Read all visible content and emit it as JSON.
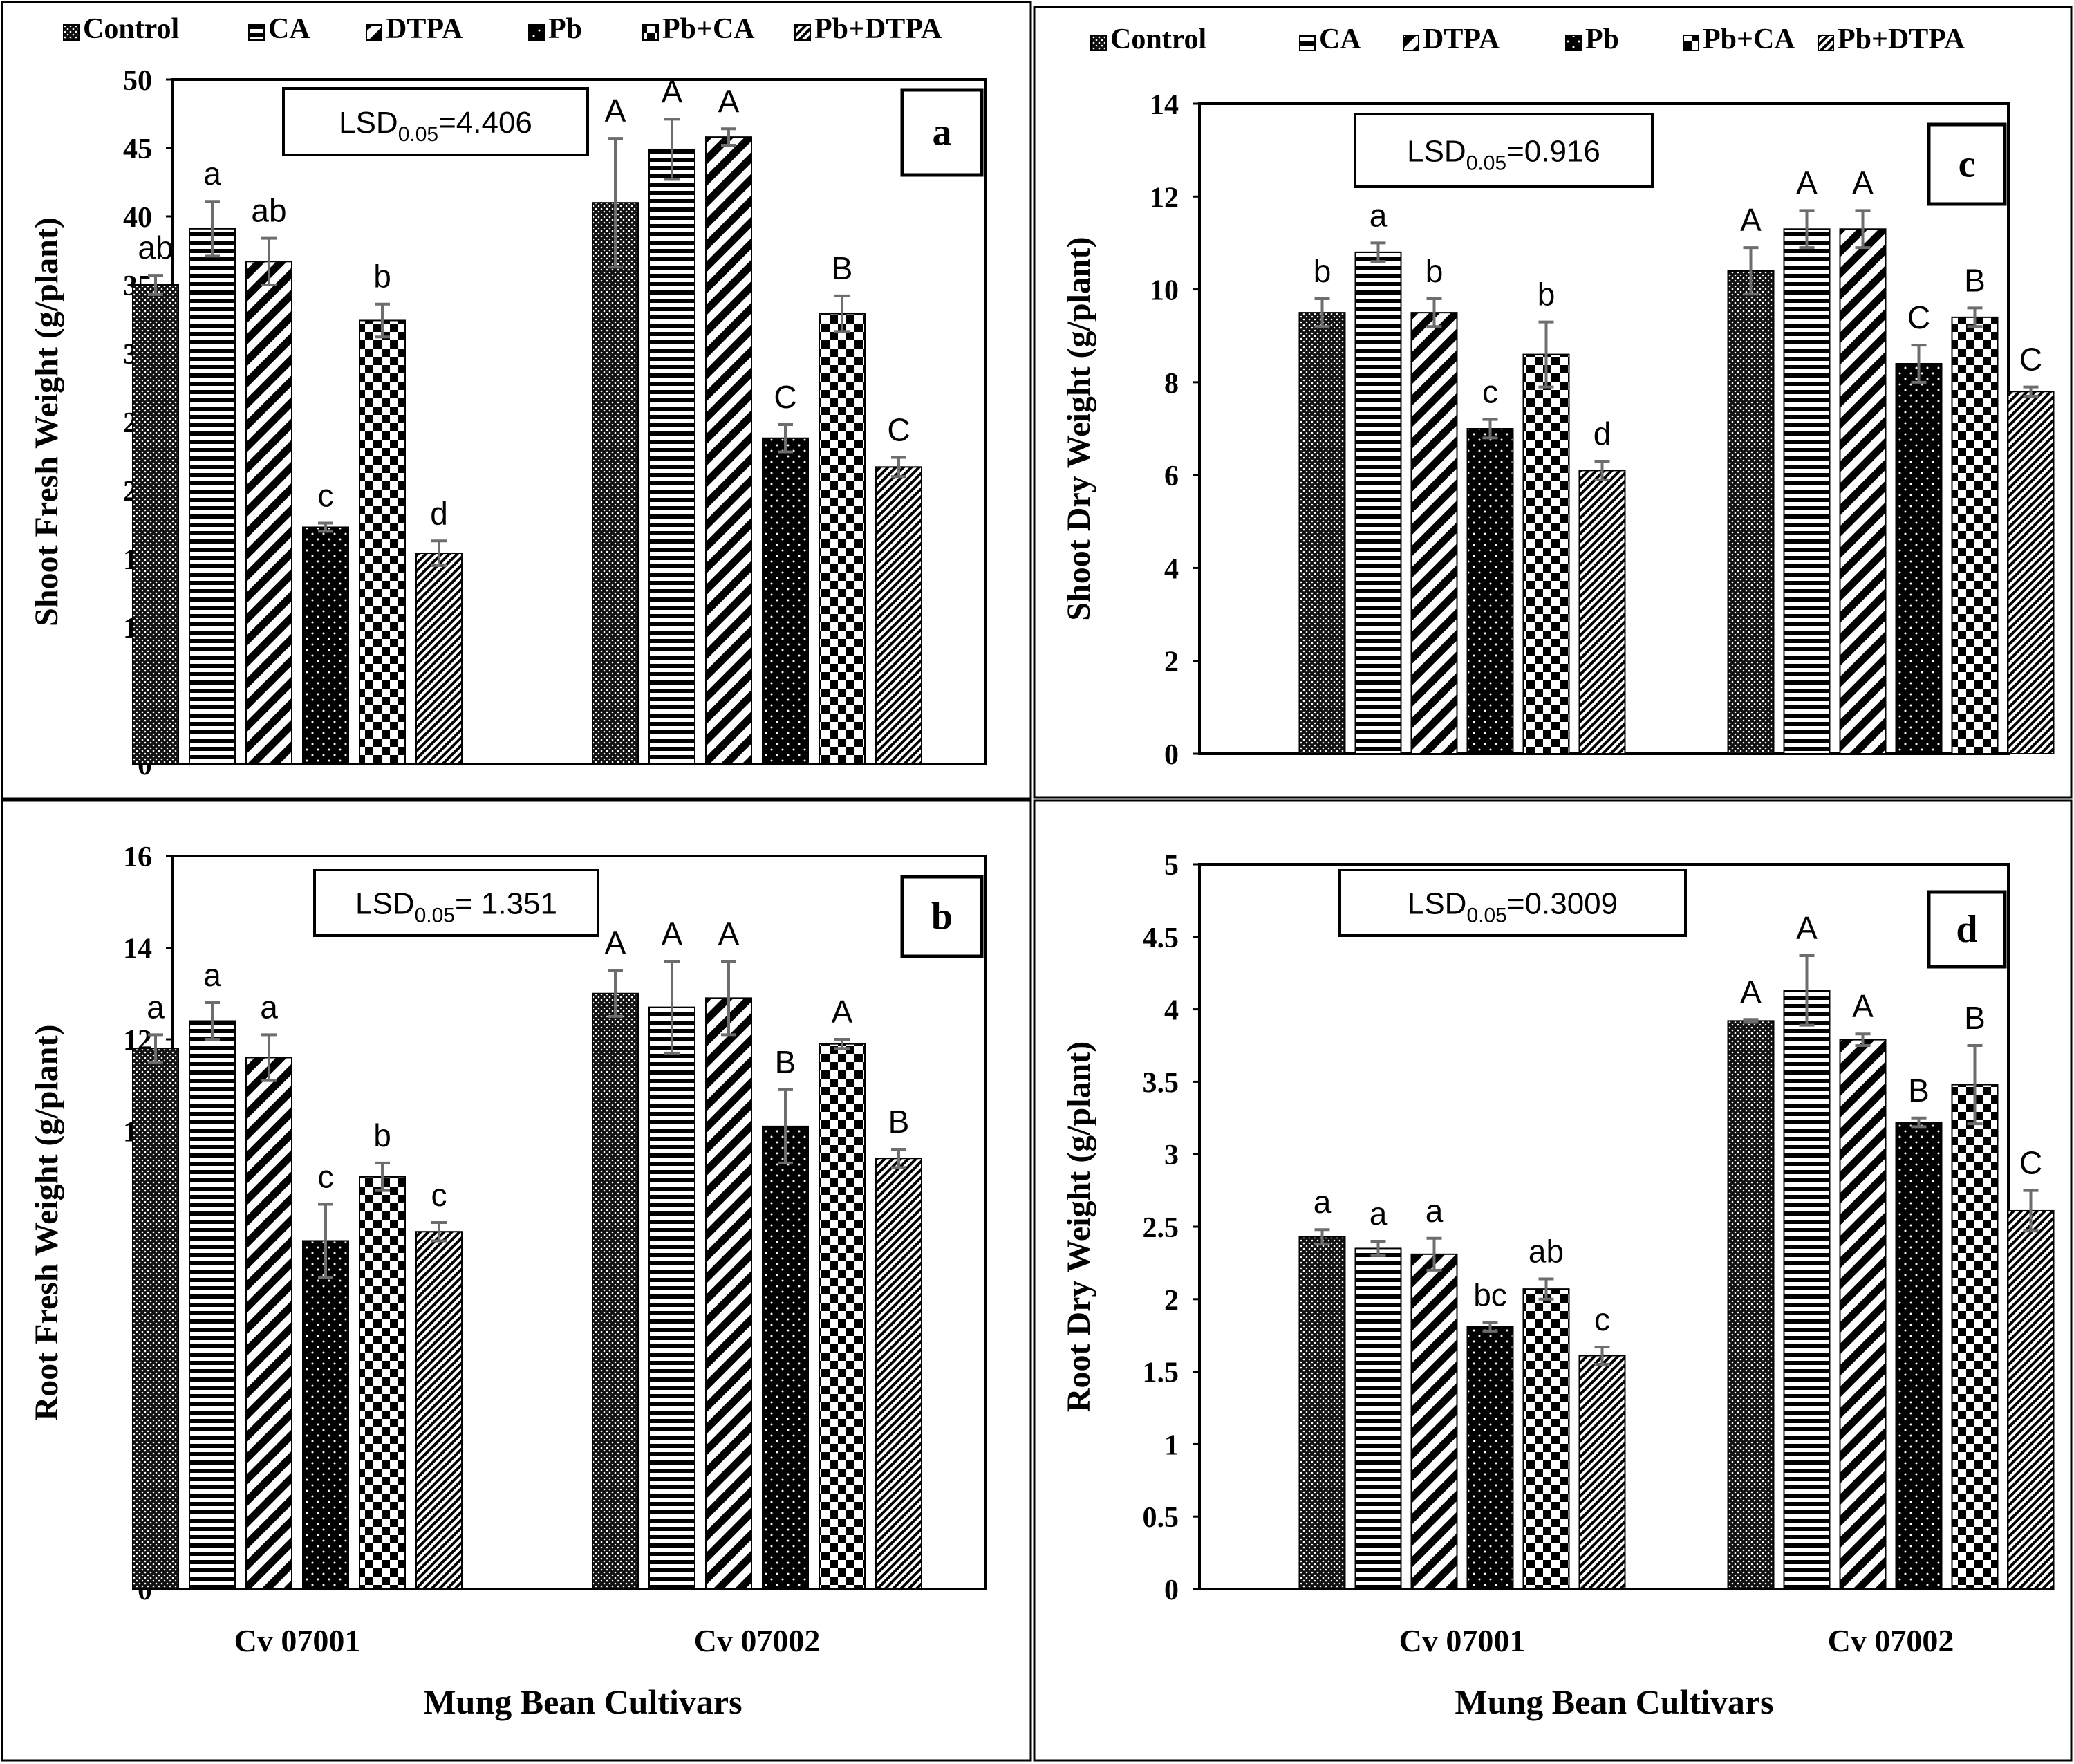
{
  "figure": {
    "x_axis_title": "Mung Bean Cultivars",
    "legend": [
      "Control",
      "CA",
      "DTPA",
      "Pb",
      "Pb+CA",
      "Pb+DTPA"
    ],
    "colors": {
      "axis": "#000000",
      "bar_edge": "#000000",
      "error_bar": "#6d6d6d",
      "background": "#ffffff"
    }
  },
  "chart_data": [
    {
      "id": "a",
      "type": "bar",
      "panel_letter": "a",
      "ylabel": "Shoot Fresh Weight (g/plant)",
      "ylim": [
        0,
        50
      ],
      "ytick_step": 5,
      "lsd": {
        "prefix": "LSD",
        "sub": "0.05",
        "value": "=4.406"
      },
      "categories": [
        "Cv 07001",
        "Cv 07002"
      ],
      "show_xticklabels": false,
      "series": [
        {
          "name": "Control",
          "values": [
            35.0,
            41.0
          ],
          "errors": [
            0.7,
            4.7
          ],
          "labels": [
            "ab",
            "A"
          ]
        },
        {
          "name": "CA",
          "values": [
            39.1,
            44.9
          ],
          "errors": [
            2.0,
            2.2
          ],
          "labels": [
            "a",
            "A"
          ]
        },
        {
          "name": "DTPA",
          "values": [
            36.7,
            45.8
          ],
          "errors": [
            1.7,
            0.6
          ],
          "labels": [
            "ab",
            "A"
          ]
        },
        {
          "name": "Pb",
          "values": [
            17.3,
            23.8
          ],
          "errors": [
            0.3,
            1.0
          ],
          "labels": [
            "c",
            "C"
          ]
        },
        {
          "name": "Pb+CA",
          "values": [
            32.4,
            32.9
          ],
          "errors": [
            1.2,
            1.3
          ],
          "labels": [
            "b",
            "B"
          ]
        },
        {
          "name": "Pb+DTPA",
          "values": [
            15.4,
            21.7
          ],
          "errors": [
            0.9,
            0.7
          ],
          "labels": [
            "d",
            "C"
          ]
        }
      ]
    },
    {
      "id": "c",
      "type": "bar",
      "panel_letter": "c",
      "ylabel": "Shoot Dry Weight (g/plant)",
      "ylim": [
        0,
        14
      ],
      "ytick_step": 2,
      "lsd": {
        "prefix": "LSD",
        "sub": "0.05",
        "value": "=0.916"
      },
      "categories": [
        "Cv 07001",
        "Cv 07002"
      ],
      "show_xticklabels": false,
      "series": [
        {
          "name": "Control",
          "values": [
            9.5,
            10.4
          ],
          "errors": [
            0.3,
            0.5
          ],
          "labels": [
            "b",
            "A"
          ]
        },
        {
          "name": "CA",
          "values": [
            10.8,
            11.3
          ],
          "errors": [
            0.2,
            0.4
          ],
          "labels": [
            "a",
            "A"
          ]
        },
        {
          "name": "DTPA",
          "values": [
            9.5,
            11.3
          ],
          "errors": [
            0.3,
            0.4
          ],
          "labels": [
            "b",
            "A"
          ]
        },
        {
          "name": "Pb",
          "values": [
            7.0,
            8.4
          ],
          "errors": [
            0.2,
            0.4
          ],
          "labels": [
            "c",
            "C"
          ]
        },
        {
          "name": "Pb+CA",
          "values": [
            8.6,
            9.4
          ],
          "errors": [
            0.7,
            0.2
          ],
          "labels": [
            "b",
            "B"
          ]
        },
        {
          "name": "Pb+DTPA",
          "values": [
            6.1,
            7.8
          ],
          "errors": [
            0.2,
            0.1
          ],
          "labels": [
            "d",
            "C"
          ]
        }
      ]
    },
    {
      "id": "b",
      "type": "bar",
      "panel_letter": "b",
      "ylabel": "Root Fresh Weight (g/plant)",
      "ylim": [
        0,
        16
      ],
      "ytick_step": 2,
      "lsd": {
        "prefix": "LSD",
        "sub": "0.05",
        "value": "= 1.351"
      },
      "categories": [
        "Cv 07001",
        "Cv 07002"
      ],
      "show_xticklabels": true,
      "series": [
        {
          "name": "Control",
          "values": [
            11.8,
            13.0
          ],
          "errors": [
            0.3,
            0.5
          ],
          "labels": [
            "a",
            "A"
          ]
        },
        {
          "name": "CA",
          "values": [
            12.4,
            12.7
          ],
          "errors": [
            0.4,
            1.0
          ],
          "labels": [
            "a",
            "A"
          ]
        },
        {
          "name": "DTPA",
          "values": [
            11.6,
            12.9
          ],
          "errors": [
            0.5,
            0.8
          ],
          "labels": [
            "a",
            "A"
          ]
        },
        {
          "name": "Pb",
          "values": [
            7.6,
            10.1
          ],
          "errors": [
            0.8,
            0.8
          ],
          "labels": [
            "c",
            "B"
          ]
        },
        {
          "name": "Pb+CA",
          "values": [
            9.0,
            11.9
          ],
          "errors": [
            0.3,
            0.1
          ],
          "labels": [
            "b",
            "A"
          ]
        },
        {
          "name": "Pb+DTPA",
          "values": [
            7.8,
            9.4
          ],
          "errors": [
            0.2,
            0.2
          ],
          "labels": [
            "c",
            "B"
          ]
        }
      ]
    },
    {
      "id": "d",
      "type": "bar",
      "panel_letter": "d",
      "ylabel": "Root Dry Weight (g/plant)",
      "ylim": [
        0,
        5
      ],
      "ytick_step": 0.5,
      "lsd": {
        "prefix": "LSD",
        "sub": "0.05",
        "value": "=0.3009"
      },
      "categories": [
        "Cv 07001",
        "Cv 07002"
      ],
      "show_xticklabels": true,
      "series": [
        {
          "name": "Control",
          "values": [
            2.43,
            3.92
          ],
          "errors": [
            0.05,
            0.01
          ],
          "labels": [
            "a",
            "A"
          ]
        },
        {
          "name": "CA",
          "values": [
            2.35,
            4.13
          ],
          "errors": [
            0.05,
            0.24
          ],
          "labels": [
            "a",
            "A"
          ]
        },
        {
          "name": "DTPA",
          "values": [
            2.31,
            3.79
          ],
          "errors": [
            0.11,
            0.04
          ],
          "labels": [
            "a",
            "A"
          ]
        },
        {
          "name": "Pb",
          "values": [
            1.81,
            3.22
          ],
          "errors": [
            0.03,
            0.03
          ],
          "labels": [
            "bc",
            "B"
          ]
        },
        {
          "name": "Pb+CA",
          "values": [
            2.07,
            3.48
          ],
          "errors": [
            0.07,
            0.27
          ],
          "labels": [
            "ab",
            "B"
          ]
        },
        {
          "name": "Pb+DTPA",
          "values": [
            1.61,
            2.61
          ],
          "errors": [
            0.06,
            0.14
          ],
          "labels": [
            "c",
            "C"
          ]
        }
      ]
    }
  ]
}
